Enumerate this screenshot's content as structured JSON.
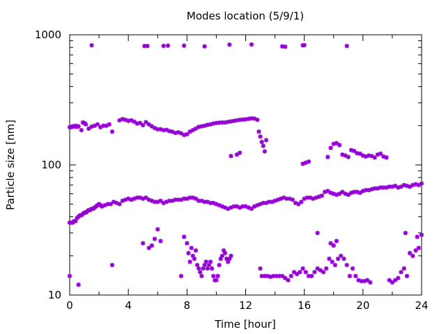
{
  "chart_data": {
    "type": "scatter",
    "title": "Modes location (5/9/1)",
    "xlabel": "Time [hour]",
    "ylabel": "Particle size [nm]",
    "xlim": [
      0,
      24
    ],
    "ylim": [
      10,
      1000
    ],
    "yscale": "log",
    "grid": false,
    "legend": "none",
    "x_ticks": [
      0,
      4,
      8,
      12,
      16,
      20,
      24
    ],
    "x_tick_labels": [
      "0",
      "4",
      "8",
      "12",
      "16",
      "20",
      "24"
    ],
    "y_ticks": [
      10,
      100,
      1000
    ],
    "y_tick_labels": [
      "10",
      "100",
      "1000"
    ],
    "marker_color": "#9400d3",
    "series": [
      {
        "values_by_segment": [
          {
            "x": [
              0.0,
              0.1,
              0.2,
              0.3,
              0.4,
              0.5,
              0.6,
              0.7,
              0.8,
              0.9,
              1.0,
              1.1,
              1.2,
              1.3,
              1.4,
              1.5,
              1.6,
              1.7,
              1.8,
              1.9,
              2.0,
              2.1,
              2.2,
              2.4,
              2.6,
              2.8
            ],
            "y": [
              36,
              36,
              36,
              37,
              37,
              39,
              40,
              41,
              41,
              42,
              43,
              43,
              44,
              45,
              45,
              46,
              46,
              47,
              48,
              49,
              50,
              49,
              48,
              49,
              50,
              50
            ]
          },
          {
            "x": [
              3.0,
              3.2,
              3.4,
              3.6,
              3.8,
              4.0,
              4.2,
              4.4,
              4.6,
              4.8,
              5.0,
              5.2,
              5.4,
              5.6,
              5.8,
              6.0,
              6.2,
              6.4,
              6.6,
              6.8,
              7.0,
              7.2,
              7.4,
              7.6,
              7.8,
              8.0,
              8.2,
              8.4,
              8.6,
              8.8,
              9.0,
              9.2,
              9.4,
              9.6,
              9.8,
              10.0,
              10.2,
              10.4,
              10.6,
              10.8,
              11.0,
              11.2,
              11.4,
              11.6,
              11.8,
              12.0,
              12.2,
              12.4,
              12.6,
              12.8
            ],
            "y": [
              52,
              51,
              50,
              53,
              54,
              55,
              54,
              55,
              56,
              56,
              55,
              56,
              54,
              53,
              52,
              52,
              53,
              51,
              52,
              53,
              53,
              54,
              54,
              54,
              55,
              55,
              56,
              56,
              55,
              53,
              53,
              52,
              52,
              51,
              51,
              50,
              49,
              48,
              47,
              46,
              47,
              48,
              48,
              47,
              48,
              48,
              47,
              46,
              48,
              49
            ]
          },
          {
            "x": [
              13.0,
              13.2,
              13.4,
              13.6,
              13.8,
              14.0,
              14.2,
              14.4,
              14.6,
              14.8,
              15.0,
              15.2,
              15.4,
              15.6,
              15.8,
              16.0,
              16.2,
              16.4,
              16.6,
              16.8,
              17.0,
              17.2,
              17.4,
              17.6,
              17.8,
              18.0,
              18.2,
              18.4,
              18.6,
              18.8,
              19.0,
              19.2,
              19.4,
              19.6,
              19.8,
              20.0,
              20.2,
              20.4,
              20.6,
              20.8,
              21.0,
              21.2,
              21.4,
              21.6,
              21.8,
              22.0,
              22.2,
              22.4,
              22.6,
              22.8,
              23.0,
              23.2,
              23.4,
              23.6,
              23.8,
              24.0
            ],
            "y": [
              50,
              51,
              51,
              52,
              52,
              53,
              54,
              55,
              56,
              55,
              55,
              54,
              51,
              50,
              52,
              55,
              56,
              56,
              55,
              56,
              57,
              58,
              62,
              63,
              61,
              60,
              59,
              60,
              62,
              60,
              59,
              61,
              62,
              62,
              61,
              63,
              64,
              64,
              65,
              66,
              66,
              67,
              67,
              67,
              68,
              68,
              69,
              67,
              68,
              70,
              69,
              68,
              70,
              71,
              70,
              72
            ]
          }
        ]
      },
      {
        "values_by_segment": [
          {
            "x": [
              0.0,
              0.1,
              0.2,
              0.3,
              0.4,
              0.5,
              0.6,
              0.8,
              0.9,
              1.0,
              1.1,
              1.3,
              1.5,
              1.7,
              1.9,
              2.1,
              2.3,
              2.5,
              2.7,
              2.9
            ],
            "y": [
              195,
              195,
              198,
              197,
              200,
              196,
              198,
              185,
              212,
              210,
              205,
              190,
              197,
              200,
              205,
              195,
              200,
              200,
              205,
              180
            ]
          },
          {
            "x": [
              3.4,
              3.6,
              3.8,
              4.0,
              4.2,
              4.4,
              4.6,
              4.8,
              5.0,
              5.2,
              5.4,
              5.6,
              5.8,
              6.0,
              6.2,
              6.4,
              6.6,
              6.8,
              7.0,
              7.2,
              7.4,
              7.6,
              7.8,
              8.0,
              8.2,
              8.4,
              8.6,
              8.8,
              9.0,
              9.2,
              9.4,
              9.6,
              9.8,
              10.0,
              10.2,
              10.4,
              10.6,
              10.8,
              11.0,
              11.2,
              11.4,
              11.6,
              11.8,
              12.0,
              12.2,
              12.4,
              12.6,
              12.8
            ],
            "y": [
              220,
              225,
              222,
              218,
              220,
              215,
              208,
              210,
              202,
              213,
              205,
              198,
              192,
              188,
              188,
              185,
              186,
              182,
              180,
              176,
              178,
              175,
              170,
              172,
              180,
              185,
              190,
              196,
              198,
              200,
              203,
              205,
              208,
              210,
              211,
              212,
              212,
              214,
              216,
              218,
              220,
              222,
              223,
              224,
              226,
              228,
              227,
              222
            ]
          },
          {
            "x": [
              12.9,
              13.0,
              13.1,
              13.2,
              13.3,
              13.4
            ],
            "y": [
              180,
              165,
              150,
              140,
              127,
              155
            ]
          },
          {
            "x": [
              11.0,
              11.4,
              11.6
            ],
            "y": [
              117,
              120,
              124
            ]
          },
          {
            "x": [
              15.9,
              16.1,
              16.3
            ],
            "y": [
              102,
              104,
              106
            ]
          },
          {
            "x": [
              17.6,
              17.8,
              18.0,
              18.2,
              18.4,
              18.6,
              18.8,
              19.0,
              19.2,
              19.4,
              19.6,
              19.8,
              20.0,
              20.2,
              20.4,
              20.6,
              20.8,
              21.0,
              21.2,
              21.4,
              21.6
            ],
            "y": [
              115,
              135,
              145,
              147,
              142,
              120,
              118,
              115,
              130,
              128,
              123,
              122,
              118,
              116,
              118,
              117,
              114,
              120,
              122,
              116,
              114
            ]
          }
        ]
      },
      {
        "values_by_segment": [
          {
            "x": [
              0.0,
              0.6,
              2.9,
              5.0,
              5.4,
              5.6,
              5.8,
              6.0,
              6.2
            ],
            "y": [
              14,
              12,
              17,
              25,
              23,
              24,
              27,
              32,
              26
            ]
          },
          {
            "x": [
              7.6,
              7.8,
              8.0,
              8.1,
              8.2,
              8.3,
              8.4,
              8.5,
              8.6,
              8.7,
              8.8,
              8.9,
              9.0,
              9.1,
              9.2,
              9.3,
              9.4,
              9.5,
              9.6,
              9.7,
              9.8,
              9.9,
              10.0,
              10.1,
              10.2,
              10.3,
              10.4,
              10.5,
              10.6,
              10.7,
              10.8,
              10.9,
              11.0
            ],
            "y": [
              14,
              28,
              25,
              21,
              18,
              23,
              20,
              19,
              22,
              17,
              16,
              15,
              14,
              16,
              17,
              18,
              16,
              17,
              18,
              16,
              14,
              13,
              13,
              14,
              17,
              19,
              20,
              22,
              21,
              19,
              18,
              19,
              20
            ]
          },
          {
            "x": [
              13.0,
              13.1,
              13.3,
              13.5,
              13.7,
              13.9,
              14.1,
              14.3,
              14.5,
              14.7,
              14.9,
              15.1,
              15.3,
              15.5,
              15.7,
              15.9,
              16.1,
              16.3,
              16.5,
              16.7,
              16.9,
              17.1,
              17.3,
              17.5,
              17.7,
              17.9,
              18.1,
              18.3,
              18.5,
              18.7,
              18.9,
              19.1,
              19.3,
              19.5,
              19.7,
              19.9,
              20.1,
              20.3,
              20.5
            ],
            "y": [
              16,
              14,
              14,
              14,
              13.8,
              14,
              14,
              14,
              14,
              13.5,
              13,
              14,
              15,
              14.5,
              15,
              16,
              15,
              14,
              14,
              15,
              16,
              15.5,
              15,
              16,
              19,
              18,
              17,
              19,
              20,
              19,
              17,
              14,
              16,
              14,
              13,
              12.8,
              12.8,
              13,
              12.5
            ]
          },
          {
            "x": [
              16.9,
              17.8,
              18.0,
              18.2
            ],
            "y": [
              30,
              25,
              24,
              26
            ]
          },
          {
            "x": [
              21.8,
              22.0,
              22.2,
              22.4,
              22.6,
              22.8,
              23.0,
              23.2,
              23.4,
              23.6,
              23.8,
              24.0
            ],
            "y": [
              13,
              12.5,
              13,
              13.5,
              15,
              16,
              14,
              21,
              20,
              22,
              23,
              29
            ]
          },
          {
            "x": [
              22.9,
              23.7
            ],
            "y": [
              30,
              28
            ]
          }
        ]
      },
      {
        "values_by_segment": [
          {
            "x": [
              1.5,
              5.1,
              5.3,
              6.4,
              6.7,
              7.8,
              9.2,
              10.9,
              12.4,
              14.5,
              14.7,
              15.9,
              16.0,
              18.9
            ],
            "y": [
              830,
              820,
              820,
              822,
              825,
              825,
              815,
              840,
              842,
              815,
              810,
              830,
              832,
              820
            ]
          }
        ]
      }
    ]
  }
}
